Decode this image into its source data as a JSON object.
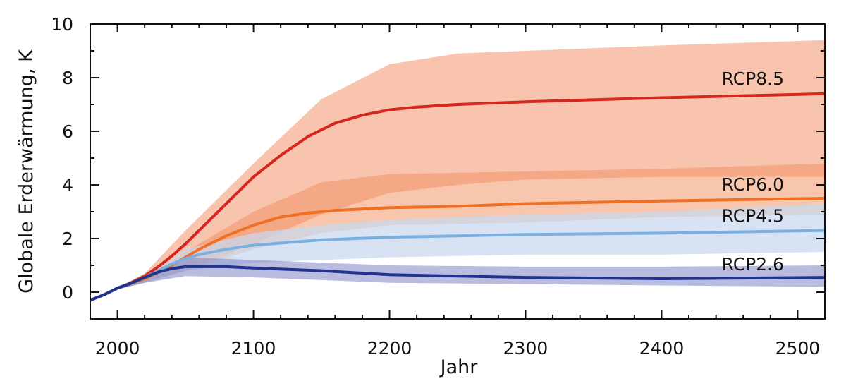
{
  "chart_data": {
    "type": "line",
    "xlabel": "Jahr",
    "ylabel": "Globale Erderwärmung, K",
    "xlim": [
      1980,
      2520
    ],
    "ylim": [
      -1,
      10
    ],
    "x_ticks": [
      2000,
      2100,
      2200,
      2300,
      2400,
      2500
    ],
    "y_ticks": [
      0,
      2,
      4,
      6,
      8,
      10
    ],
    "grid": false,
    "legend": "none",
    "bands": [
      {
        "series": "RCP8.5",
        "color": "#f4a582",
        "opacity": 0.65,
        "x": [
          1980,
          2000,
          2020,
          2050,
          2100,
          2150,
          2200,
          2250,
          2300,
          2400,
          2520
        ],
        "lower": [
          -0.3,
          0.1,
          0.4,
          0.8,
          1.8,
          2.9,
          3.7,
          4.0,
          4.2,
          4.3,
          4.3
        ],
        "upper": [
          -0.3,
          0.15,
          0.7,
          2.3,
          4.8,
          7.2,
          8.5,
          8.9,
          9.0,
          9.2,
          9.4
        ]
      },
      {
        "series": "RCP6.0",
        "color": "#f28c5c",
        "opacity": 0.5,
        "x": [
          1980,
          2000,
          2020,
          2050,
          2100,
          2150,
          2200,
          2300,
          2400,
          2520
        ],
        "lower": [
          -0.3,
          0.1,
          0.35,
          0.8,
          1.6,
          2.2,
          2.5,
          2.6,
          2.8,
          2.9
        ],
        "upper": [
          -0.3,
          0.15,
          0.55,
          1.5,
          3.0,
          4.1,
          4.4,
          4.5,
          4.6,
          4.8
        ]
      },
      {
        "series": "RCP4.5",
        "color": "#c9d8ee",
        "opacity": 0.75,
        "x": [
          1980,
          2000,
          2020,
          2050,
          2100,
          2150,
          2200,
          2300,
          2400,
          2520
        ],
        "lower": [
          -0.3,
          0.1,
          0.35,
          0.8,
          1.1,
          1.2,
          1.3,
          1.4,
          1.4,
          1.5
        ],
        "upper": [
          -0.3,
          0.15,
          0.5,
          1.6,
          2.2,
          2.5,
          2.7,
          2.9,
          3.0,
          3.3
        ]
      },
      {
        "series": "RCP2.6",
        "color": "#7f84c4",
        "opacity": 0.55,
        "x": [
          1980,
          2000,
          2020,
          2050,
          2100,
          2150,
          2200,
          2300,
          2400,
          2520
        ],
        "lower": [
          -0.3,
          0.1,
          0.35,
          0.6,
          0.55,
          0.45,
          0.35,
          0.3,
          0.25,
          0.2
        ],
        "upper": [
          -0.3,
          0.15,
          0.55,
          1.3,
          1.2,
          1.1,
          1.0,
          0.95,
          0.95,
          1.0
        ]
      }
    ],
    "series": [
      {
        "name": "RCP8.5",
        "color": "#d7261e",
        "x": [
          1980,
          1990,
          2000,
          2010,
          2020,
          2030,
          2040,
          2050,
          2060,
          2080,
          2100,
          2120,
          2140,
          2160,
          2180,
          2200,
          2220,
          2250,
          2300,
          2400,
          2520
        ],
        "y": [
          -0.3,
          -0.1,
          0.15,
          0.35,
          0.6,
          0.95,
          1.35,
          1.8,
          2.3,
          3.3,
          4.3,
          5.1,
          5.8,
          6.3,
          6.6,
          6.8,
          6.9,
          7.0,
          7.1,
          7.25,
          7.4
        ]
      },
      {
        "name": "RCP6.0",
        "color": "#ef6f24",
        "x": [
          1980,
          1990,
          2000,
          2010,
          2020,
          2030,
          2040,
          2050,
          2060,
          2080,
          2100,
          2120,
          2140,
          2160,
          2200,
          2250,
          2300,
          2400,
          2520
        ],
        "y": [
          -0.3,
          -0.1,
          0.15,
          0.32,
          0.5,
          0.75,
          1.0,
          1.3,
          1.6,
          2.1,
          2.5,
          2.8,
          2.95,
          3.05,
          3.15,
          3.2,
          3.3,
          3.4,
          3.5
        ]
      },
      {
        "name": "RCP4.5",
        "color": "#79b0e0",
        "x": [
          1980,
          1990,
          2000,
          2010,
          2020,
          2030,
          2040,
          2050,
          2060,
          2080,
          2100,
          2150,
          2200,
          2250,
          2300,
          2400,
          2520
        ],
        "y": [
          -0.3,
          -0.1,
          0.15,
          0.32,
          0.55,
          0.8,
          1.05,
          1.25,
          1.4,
          1.6,
          1.75,
          1.95,
          2.05,
          2.1,
          2.15,
          2.2,
          2.3
        ]
      },
      {
        "name": "RCP2.6",
        "color": "#22338e",
        "x": [
          1980,
          1990,
          2000,
          2010,
          2020,
          2030,
          2040,
          2050,
          2060,
          2080,
          2100,
          2150,
          2200,
          2250,
          2300,
          2400,
          2520
        ],
        "y": [
          -0.3,
          -0.1,
          0.15,
          0.33,
          0.55,
          0.75,
          0.88,
          0.95,
          0.95,
          0.95,
          0.9,
          0.8,
          0.65,
          0.6,
          0.55,
          0.5,
          0.55
        ]
      }
    ]
  }
}
